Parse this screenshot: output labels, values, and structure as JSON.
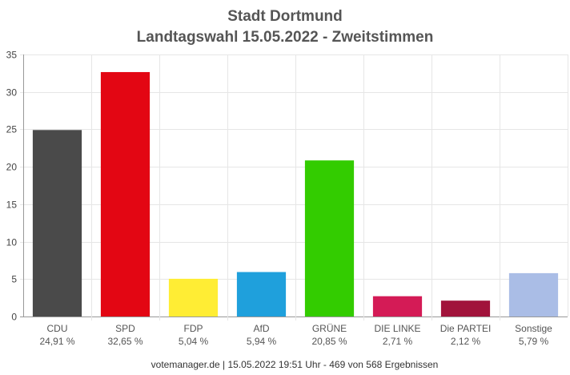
{
  "chart_data": {
    "type": "bar",
    "title": "Stadt Dortmund",
    "subtitle": "Landtagswahl 15.05.2022  - Zweitstimmen",
    "ylim": [
      0,
      35
    ],
    "yticks": [
      0,
      5,
      10,
      15,
      20,
      25,
      30,
      35
    ],
    "grid": true,
    "categories": [
      "CDU",
      "SPD",
      "FDP",
      "AfD",
      "GRÜNE",
      "DIE LINKE",
      "Die PARTEI",
      "Sonstige"
    ],
    "values": [
      24.91,
      32.65,
      5.04,
      5.94,
      20.85,
      2.71,
      2.12,
      5.79
    ],
    "value_labels": [
      "24,91 %",
      "32,65 %",
      "5,04 %",
      "5,94 %",
      "20,85 %",
      "2,71 %",
      "2,12 %",
      "5,79 %"
    ],
    "colors": [
      "#4a4a4a",
      "#e30613",
      "#ffed34",
      "#1fa0dc",
      "#33cc00",
      "#d41b56",
      "#a1133b",
      "#aabde6"
    ]
  },
  "footer": "votemanager.de | 15.05.2022 19:51 Uhr - 469 von 568 Ergebnissen"
}
